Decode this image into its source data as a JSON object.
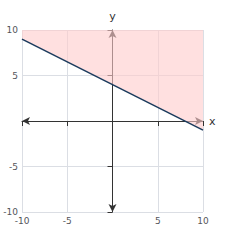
{
  "chart_data": {
    "type": "line",
    "x": [
      -10,
      10
    ],
    "series": [
      {
        "type": "area",
        "color": "#ffcccc",
        "values": [
          9,
          -1
        ]
      },
      {
        "type": "line",
        "color": "#1a3a5c",
        "values": [
          9,
          -1
        ]
      }
    ],
    "xlabel": "x",
    "ylabel": "y",
    "xlim": [
      -10,
      10
    ],
    "ylim": [
      -10,
      10
    ],
    "xticks": [
      -10,
      -5,
      5,
      10
    ],
    "yticks": [
      -10,
      -5,
      5,
      10
    ],
    "grid": true
  }
}
